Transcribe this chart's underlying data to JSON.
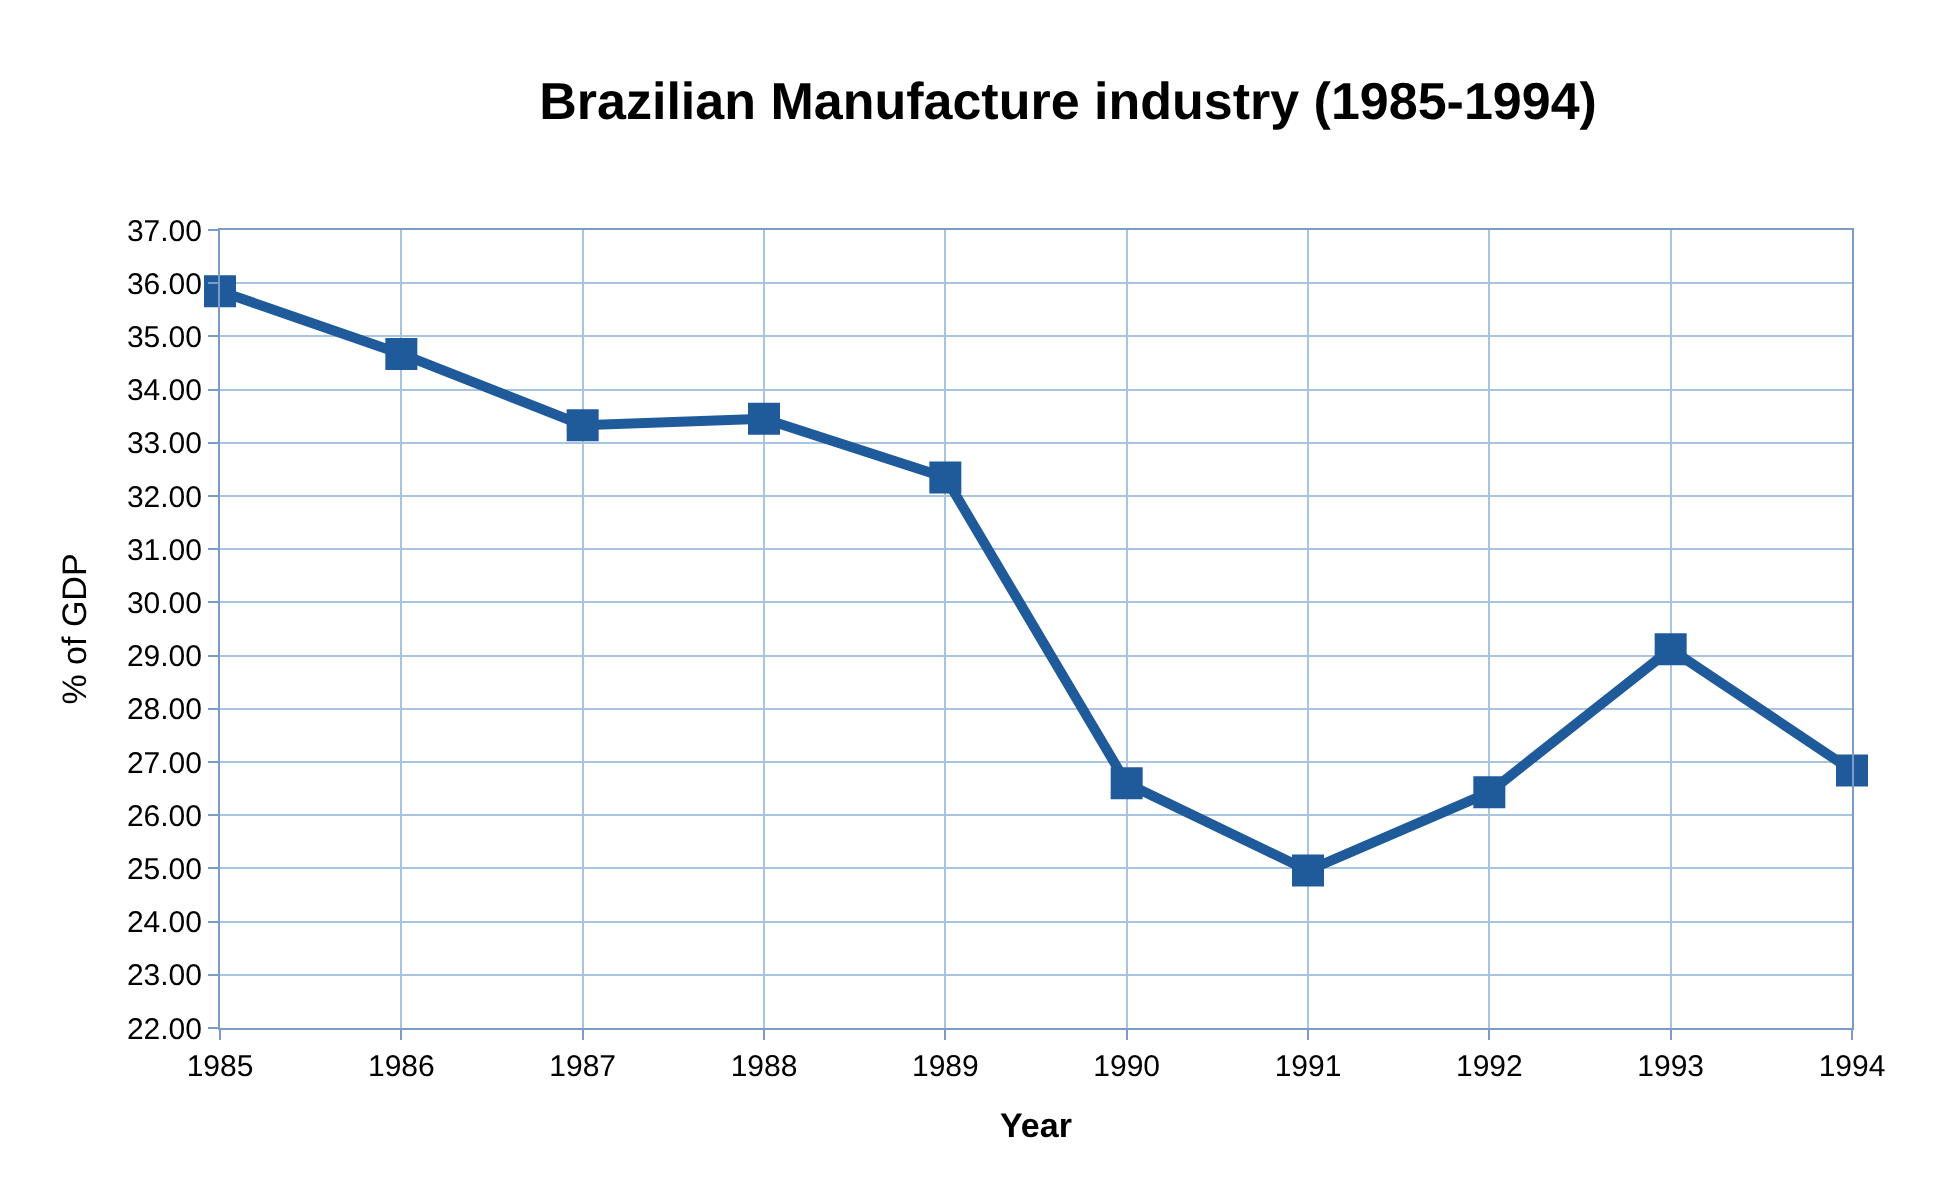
{
  "chart_data": {
    "type": "line",
    "title": "Brazilian Manufacture industry (1985-1994)",
    "xlabel": "Year",
    "ylabel": "% of GDP",
    "x": [
      1985,
      1986,
      1987,
      1988,
      1989,
      1990,
      1991,
      1992,
      1993,
      1994
    ],
    "series": [
      {
        "color": "#1f5a9a",
        "values": [
          35.85,
          34.67,
          33.33,
          33.45,
          32.35,
          26.6,
          24.96,
          26.43,
          29.12,
          26.84
        ]
      }
    ],
    "xlim": [
      1985,
      1994
    ],
    "xticks": [
      1985,
      1986,
      1987,
      1988,
      1989,
      1990,
      1991,
      1992,
      1993,
      1994
    ],
    "ylim": [
      22,
      37
    ],
    "yticks": [
      {
        "value": 22,
        "label": "22.00"
      },
      {
        "value": 23,
        "label": "23.00"
      },
      {
        "value": 24,
        "label": "24.00"
      },
      {
        "value": 25,
        "label": "25.00"
      },
      {
        "value": 26,
        "label": "26.00"
      },
      {
        "value": 27,
        "label": "27.00"
      },
      {
        "value": 28,
        "label": "28.00"
      },
      {
        "value": 29,
        "label": "29.00"
      },
      {
        "value": 30,
        "label": "30.00"
      },
      {
        "value": 31,
        "label": "31.00"
      },
      {
        "value": 32,
        "label": "32.00"
      },
      {
        "value": 33,
        "label": "33.00"
      },
      {
        "value": 34,
        "label": "34.00"
      },
      {
        "value": 35,
        "label": "35.00"
      },
      {
        "value": 36,
        "label": "36.00"
      },
      {
        "value": 37,
        "label": "37.00"
      }
    ],
    "grid": true,
    "marker": "square",
    "line_style": "solid",
    "legend": false
  }
}
